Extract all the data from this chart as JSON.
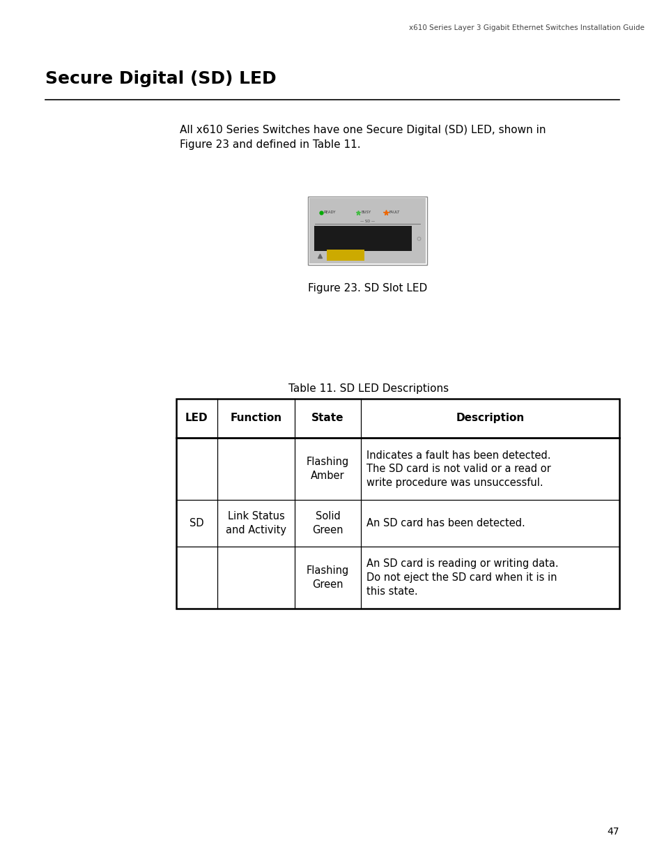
{
  "page_width": 9.54,
  "page_height": 12.35,
  "bg_color": "#ffffff",
  "header_text": "x610 Series Layer 3 Gigabit Ethernet Switches Installation Guide",
  "header_fontsize": 7.5,
  "title": "Secure Digital (SD) LED",
  "title_fontsize": 18,
  "body_text": "All x610 Series Switches have one Secure Digital (SD) LED, shown in\nFigure 23 and defined in Table 11.",
  "body_fontsize": 11,
  "figure_caption": "Figure 23. SD Slot LED",
  "figure_caption_fontsize": 11,
  "table_title": "Table 11. SD LED Descriptions",
  "table_title_fontsize": 11,
  "table_header": [
    "LED",
    "Function",
    "State",
    "Description"
  ],
  "table_header_fontsize": 11,
  "state_texts": [
    "Flashing\nAmber",
    "Solid\nGreen",
    "Flashing\nGreen"
  ],
  "desc_texts": [
    "Indicates a fault has been detected.\nThe SD card is not valid or a read or\nwrite procedure was unsuccessful.",
    "An SD card has been detected.",
    "An SD card is reading or writing data.\nDo not eject the SD card when it is in\nthis state."
  ],
  "table_fontsize": 10.5,
  "footer_text": "47",
  "footer_fontsize": 10,
  "device_bg": "#c0c0c0",
  "device_screen_bg": "#1a1a1a",
  "device_led_ready_color": "#00aa00",
  "device_led_busy_color": "#44bb44",
  "device_led_fault_color": "#ee6600",
  "device_slot_color": "#ccaa00"
}
